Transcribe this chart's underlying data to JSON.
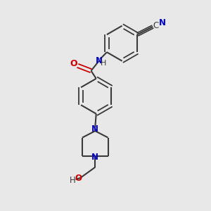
{
  "bg_color": "#e8e8e8",
  "bond_color": "#3a3a3a",
  "N_color": "#0000cc",
  "O_color": "#cc0000",
  "text_color": "#3a3a3a",
  "fig_size": [
    3.0,
    3.0
  ],
  "dpi": 100,
  "xlim": [
    0,
    10
  ],
  "ylim": [
    0,
    10
  ]
}
